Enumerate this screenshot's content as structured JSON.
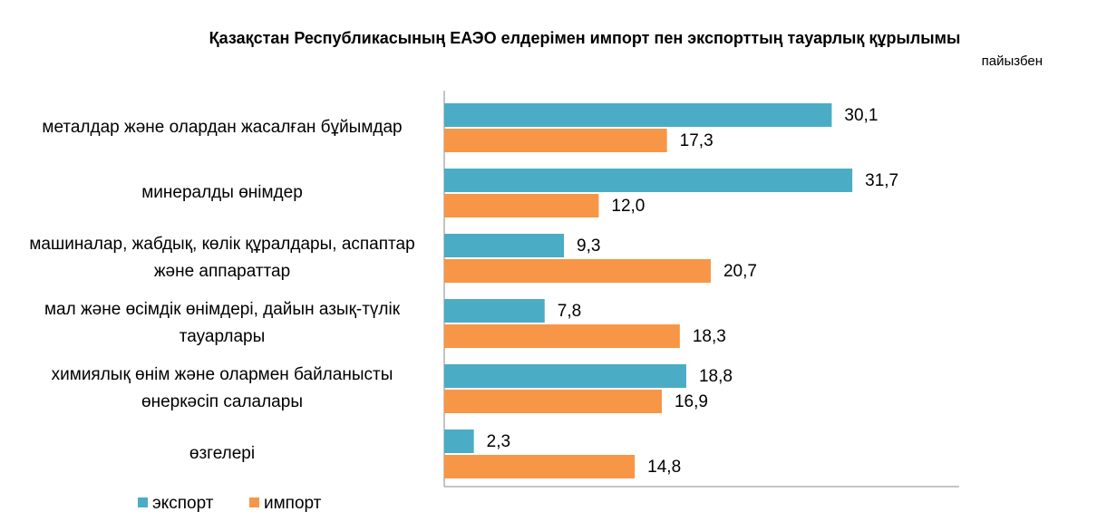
{
  "chart_data": {
    "type": "hbar",
    "title": "Қазақстан Республикасының ЕАЭО елдерімен импорт пен экспорттың тауарлық құрылымы",
    "subtitle": "пайызбен",
    "categories": [
      "металдар және олардан жасалған бұйымдар",
      "минералды өнімдер",
      "машиналар, жабдық, көлік құралдары, аспаптар және аппараттар",
      "мал және өсімдік өнімдері, дайын азық-түлік тауарлары",
      "химиялық өнім және олармен байланысты өнеркәсіп салалары",
      "өзгелері"
    ],
    "series": [
      {
        "name": "экспорт",
        "color": "#4bacc6",
        "values": [
          30.1,
          31.7,
          9.3,
          7.8,
          18.8,
          2.3
        ],
        "value_labels": [
          "30,1",
          "31,7",
          "9,3",
          "7,8",
          "18,8",
          "2,3"
        ]
      },
      {
        "name": "импорт",
        "color": "#f79646",
        "values": [
          17.3,
          12.0,
          20.7,
          18.3,
          16.9,
          14.8
        ],
        "value_labels": [
          "17,3",
          "12,0",
          "20,7",
          "18,3",
          "16,9",
          "14,8"
        ]
      }
    ],
    "xlim": [
      0,
      40
    ]
  }
}
